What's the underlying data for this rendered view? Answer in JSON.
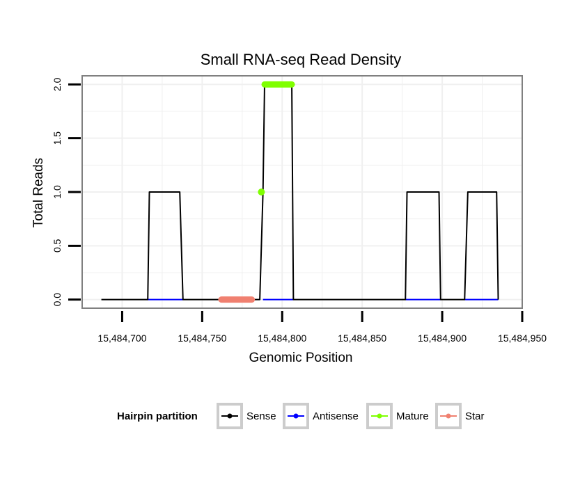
{
  "chart_data": {
    "type": "line",
    "title": "Small RNA-seq Read Density",
    "xlabel": "Genomic Position",
    "ylabel": "Total Reads",
    "xlim": [
      15484675,
      15484950
    ],
    "ylim": [
      -0.08,
      2.08
    ],
    "x_ticks": [
      15484700,
      15484750,
      15484800,
      15484850,
      15484900,
      15484950
    ],
    "x_tick_labels": [
      "15,484,700",
      "15,484,750",
      "15,484,800",
      "15,484,850",
      "15,484,900",
      "15,484,950"
    ],
    "y_ticks": [
      0,
      0.5,
      1,
      1.5,
      2
    ],
    "y_tick_labels": [
      "0.0",
      "0.5",
      "1.0",
      "1.5",
      "2.0"
    ],
    "grid": true,
    "legend_position": "bottom",
    "legend_title": "Hairpin partition",
    "series": [
      {
        "name": "Sense",
        "color": "#000000",
        "x": [
          15484687,
          15484716,
          15484717,
          15484736,
          15484738,
          15484786,
          15484788,
          15484789,
          15484806,
          15484807,
          15484877,
          15484878,
          15484898,
          15484899,
          15484914,
          15484916,
          15484934,
          15484935
        ],
        "values": [
          0,
          0,
          1,
          1,
          0,
          0,
          1,
          2,
          2,
          0,
          0,
          1,
          1,
          0,
          0,
          1,
          1,
          0
        ]
      },
      {
        "name": "Antisense",
        "color": "#0000ff",
        "x": [
          15484716,
          15484738,
          15484788,
          15484807,
          15484877,
          15484899,
          15484914,
          15484935
        ],
        "values": [
          0,
          0,
          0,
          0,
          0,
          0,
          0,
          0
        ],
        "segments": [
          [
            0,
            1
          ],
          [
            2,
            3
          ],
          [
            4,
            5
          ],
          [
            6,
            7
          ]
        ]
      },
      {
        "name": "Mature",
        "color": "#7fff00",
        "points_x": [
          15484787
        ],
        "points_y": [
          1
        ],
        "segment_x": [
          15484789,
          15484806
        ],
        "segment_y": [
          2,
          2
        ]
      },
      {
        "name": "Star",
        "color": "#f08070",
        "segment_x": [
          15484762,
          15484781
        ],
        "segment_y": [
          0,
          0
        ]
      }
    ]
  }
}
